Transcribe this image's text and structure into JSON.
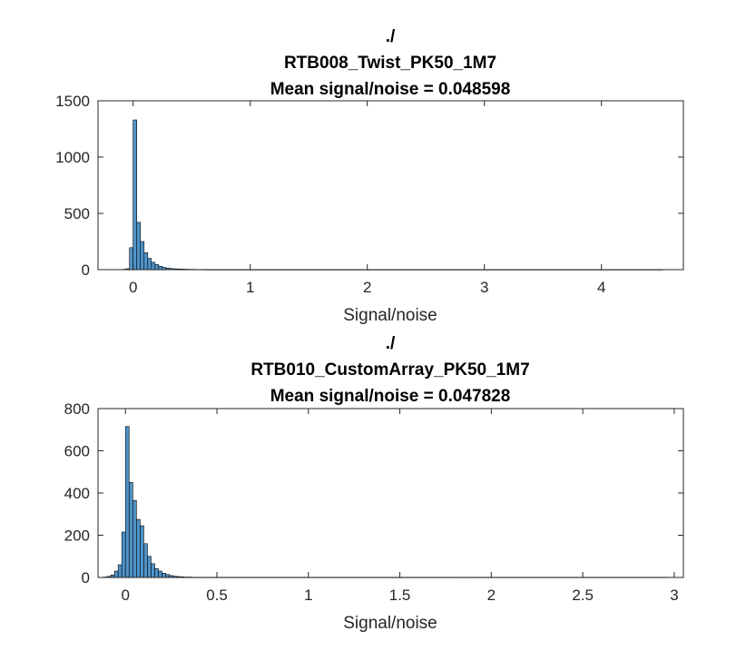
{
  "chart_data": [
    {
      "type": "bar",
      "title_lines": [
        "./",
        "RTB008_Twist_PK50_1M7",
        "Mean signal/noise = 0.048598"
      ],
      "xlabel": "Signal/noise",
      "ylabel": "",
      "xlim": [
        -0.3,
        4.7
      ],
      "ylim": [
        0,
        1500
      ],
      "xticks": [
        0,
        1,
        2,
        3,
        4
      ],
      "yticks": [
        0,
        500,
        1000,
        1500
      ],
      "bar_color": "#4f93c8",
      "edge_color": "#000000",
      "bin_width": 0.0312,
      "bin_start": -0.0936,
      "counts": [
        3,
        8,
        195,
        1330,
        420,
        250,
        150,
        100,
        65,
        45,
        30,
        20,
        14,
        10,
        8,
        6,
        5,
        4,
        3,
        3,
        2,
        2,
        2,
        1,
        1,
        1,
        1,
        1,
        1,
        1,
        1,
        1,
        1,
        1,
        1,
        1,
        1,
        1,
        1,
        1,
        1,
        1,
        1,
        1,
        1,
        1,
        1,
        1,
        1,
        1,
        1,
        1,
        1,
        1,
        1,
        1,
        1,
        1,
        1,
        1,
        1,
        1,
        1,
        1,
        1,
        1,
        1,
        1,
        1,
        1,
        1,
        1,
        1,
        1,
        1,
        1,
        1,
        1,
        1,
        1,
        1,
        1,
        1,
        1,
        1,
        1,
        1,
        1,
        1,
        1,
        1,
        1,
        1,
        1,
        1,
        1,
        1,
        1,
        1,
        1,
        1,
        1,
        1,
        1,
        1,
        1,
        1,
        1,
        1,
        1,
        1,
        1,
        1,
        1,
        1,
        1,
        1,
        1,
        1,
        1,
        1,
        1,
        1,
        1,
        1,
        1,
        1,
        1,
        1,
        1,
        1,
        1,
        1,
        1,
        1,
        1,
        1,
        1,
        1,
        1,
        1,
        1,
        1,
        1,
        1,
        1,
        1,
        1
      ]
    },
    {
      "type": "bar",
      "title_lines": [
        "./",
        "RTB010_CustomArray_PK50_1M7",
        "Mean signal/noise = 0.047828"
      ],
      "xlabel": "Signal/noise",
      "ylabel": "",
      "xlim": [
        -0.15,
        3.05
      ],
      "ylim": [
        0,
        800
      ],
      "xticks": [
        0,
        0.5,
        1,
        1.5,
        2,
        2.5,
        3
      ],
      "yticks": [
        0,
        200,
        400,
        600,
        800
      ],
      "bar_color": "#4f93c8",
      "edge_color": "#000000",
      "bin_width": 0.02,
      "bin_start": -0.12,
      "counts": [
        2,
        5,
        12,
        30,
        60,
        215,
        715,
        450,
        365,
        275,
        245,
        160,
        100,
        65,
        42,
        30,
        20,
        14,
        9,
        6,
        4,
        3,
        2,
        2,
        1,
        1,
        1,
        1,
        1,
        1,
        1,
        1,
        1,
        1,
        1,
        1,
        1,
        1,
        1,
        1,
        1,
        1,
        1,
        1,
        1,
        1,
        1,
        1,
        1,
        1,
        1,
        1,
        1,
        1,
        1,
        1,
        1,
        1,
        1,
        1,
        1,
        1,
        1,
        1,
        1,
        1,
        1,
        1,
        1,
        1,
        1,
        1,
        1,
        1,
        1,
        1,
        1,
        1,
        1,
        1,
        1,
        1,
        1,
        1,
        1,
        1,
        1,
        1,
        1,
        1,
        1,
        1,
        1,
        1,
        1,
        1,
        1,
        1,
        1,
        1,
        1,
        1,
        1,
        1,
        1,
        1,
        1,
        1,
        1,
        1,
        1,
        1,
        1,
        1,
        1,
        1,
        1,
        1,
        1,
        1,
        1,
        1,
        1,
        1,
        1,
        1,
        1,
        1,
        1,
        1,
        1,
        1,
        1,
        1,
        1,
        1,
        1,
        1,
        1,
        1,
        1,
        1,
        1,
        1,
        1,
        1,
        1,
        1,
        1,
        1,
        1,
        1,
        1,
        1
      ]
    }
  ]
}
